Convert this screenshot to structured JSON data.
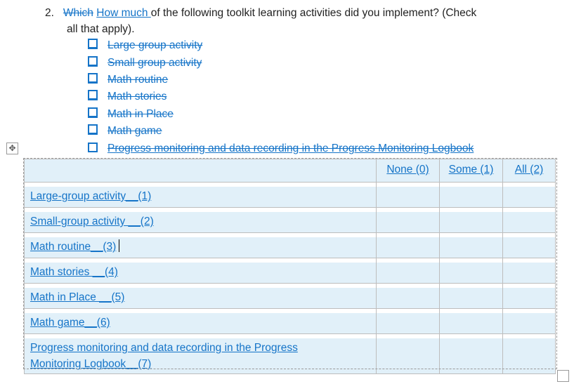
{
  "question": {
    "number": "2.",
    "deleted_word": "Which",
    "inserted_phrase": "How much ",
    "text_line1": "of the following toolkit learning activities did you implement? (Check",
    "text_line2": "all that apply)."
  },
  "checklist": [
    {
      "label": "Large group activity",
      "deleted": true
    },
    {
      "label": "Small group activity",
      "deleted": true
    },
    {
      "label": "Math routine",
      "deleted": true
    },
    {
      "label": "Math stories",
      "deleted": true
    },
    {
      "label": "Math in Place",
      "deleted": true
    },
    {
      "label": "Math game",
      "deleted": true
    },
    {
      "label": "Progress monitoring and data recording in the Progress Monitoring Logbook",
      "deleted": true
    }
  ],
  "table": {
    "headers": [
      "",
      "None (0)",
      "Some (1)",
      "All (2)"
    ],
    "rows": [
      {
        "label": "Large-group activity__(1)"
      },
      {
        "label": "Small-group activity __(2)"
      },
      {
        "label": "Math routine__(3)"
      },
      {
        "label": "Math stories __(4)"
      },
      {
        "label": "Math in Place __(5)"
      },
      {
        "label": "Math game__(6)"
      },
      {
        "label_line1": "Progress monitoring and data recording in the Progress",
        "label_line2": "Monitoring Logbook__(7)"
      }
    ]
  },
  "colors": {
    "track_change": "#1574c8",
    "cell_shading": "#e1f0f9"
  },
  "icons": {
    "table_move": "move-arrows-icon",
    "checkbox": "checkbox-icon",
    "table_resize": "resize-handle-icon"
  }
}
